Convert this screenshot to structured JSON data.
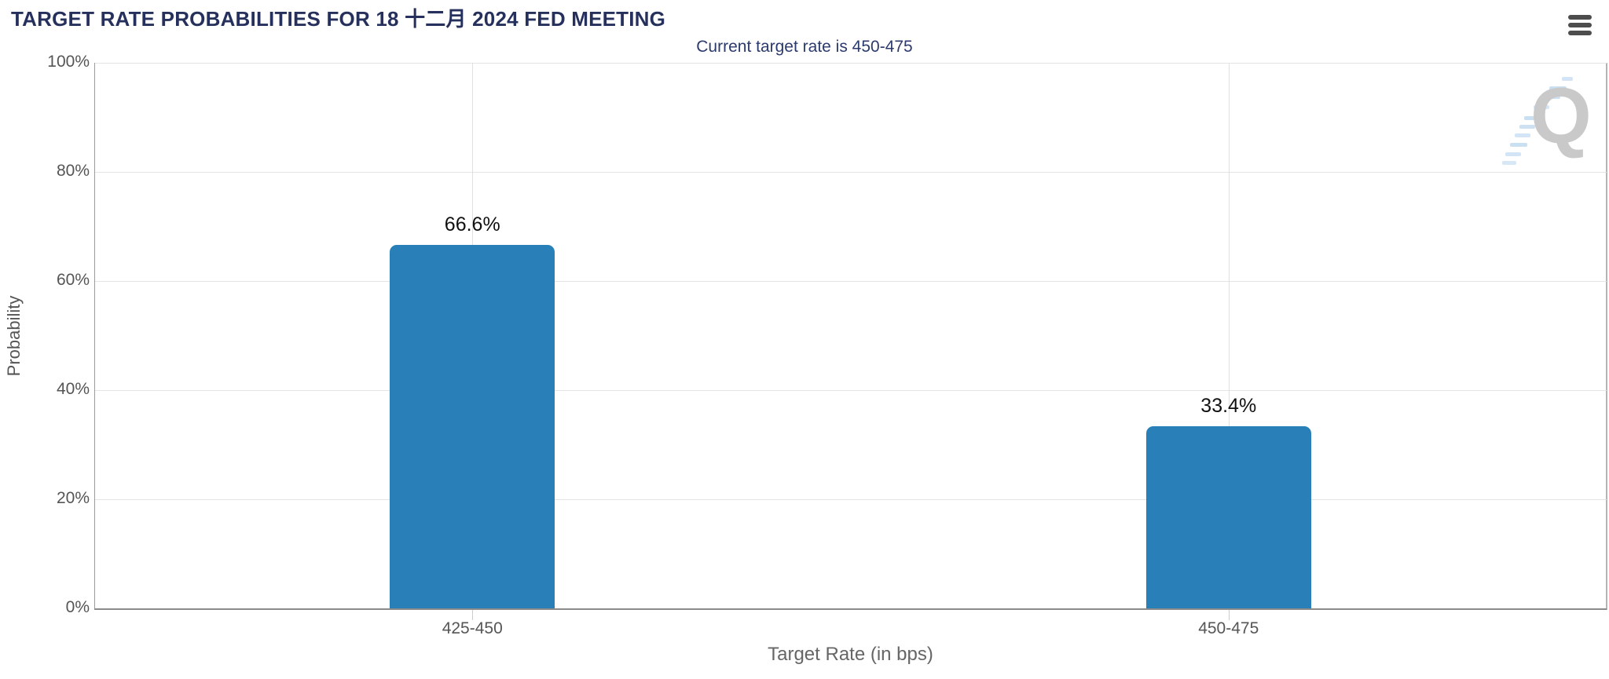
{
  "header": {
    "menu_icon": "hamburger-menu"
  },
  "watermark": {
    "letter": "Q"
  },
  "colors": {
    "title_navy": "#26305c",
    "subtitle_navy": "#2c3a6e",
    "bar_blue": "#2980b8",
    "grid_gray": "#e4e4e4",
    "axis_gray": "#9b9b9b",
    "label_gray": "#555555",
    "menu_gray": "#4d4d4d",
    "watermark_gray": "#c9c9c9",
    "watermark_blue": "#9cc4e8"
  },
  "chart_data": {
    "type": "bar",
    "title": "TARGET RATE PROBABILITIES FOR 18 十二月 2024 FED MEETING",
    "subtitle": "Current target rate is 450-475",
    "categories": [
      "425-450",
      "450-475"
    ],
    "values": [
      66.6,
      33.4
    ],
    "value_labels": [
      "66.6%",
      "33.4%"
    ],
    "xlabel": "Target Rate (in bps)",
    "ylabel": "Probability",
    "ylim": [
      0,
      100
    ],
    "yticks": [
      0,
      20,
      40,
      60,
      80,
      100
    ],
    "ytick_labels": [
      "0%",
      "20%",
      "40%",
      "60%",
      "80%",
      "100%"
    ],
    "grid": true,
    "legend": false,
    "bar_color": "#2980b8"
  }
}
